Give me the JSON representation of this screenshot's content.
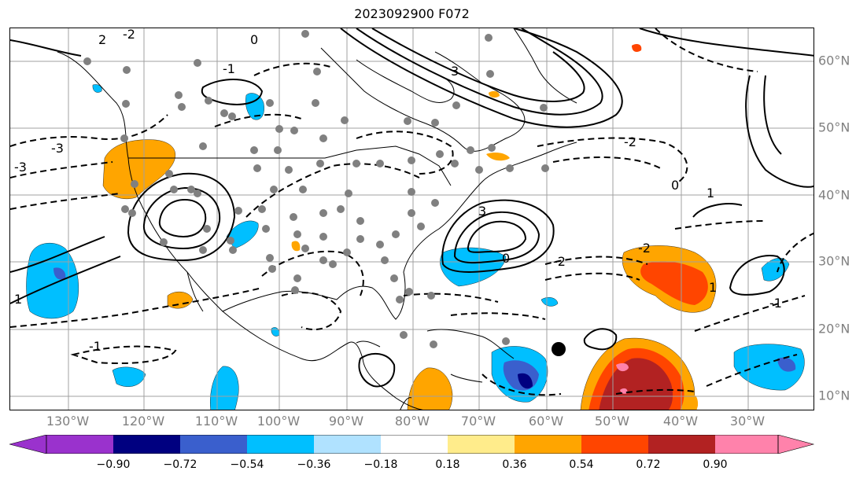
{
  "title": "2023092900 F072",
  "lon_labels": [
    "130°W",
    "120°W",
    "110°W",
    "100°W",
    "90°W",
    "80°W",
    "70°W",
    "60°W",
    "50°W",
    "40°W",
    "30°W"
  ],
  "lat_labels": [
    "60°N",
    "50°N",
    "40°N",
    "30°N",
    "20°N",
    "10°N"
  ],
  "colorbar": {
    "ticks": [
      "−0.90",
      "−0.72",
      "−0.54",
      "−0.36",
      "−0.18",
      "0.18",
      "0.36",
      "0.54",
      "0.72",
      "0.90"
    ],
    "colors": [
      "#9a32cd",
      "#000080",
      "#3a5fcd",
      "#00bfff",
      "#b0e2ff",
      "#ffffff",
      "#ffec8b",
      "#ffa500",
      "#ff4500",
      "#b22222",
      "#ff82ab"
    ]
  },
  "contour_labels": [
    "-2",
    "2",
    "-3",
    "-1",
    "0",
    "1",
    "3",
    "-2",
    "0",
    "-2",
    "3",
    "-3",
    "-1",
    "1",
    "0",
    "-1",
    "-2",
    "1"
  ],
  "colors": {
    "frame": "#000000",
    "grid": "#a0a0a0",
    "coast": "#000000",
    "station": "#808080",
    "axis_label": "#808080"
  }
}
